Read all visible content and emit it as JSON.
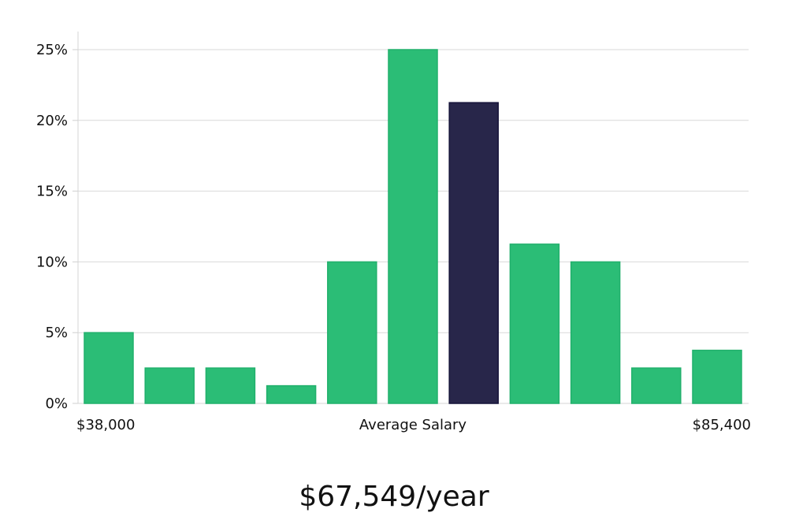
{
  "chart_data": {
    "type": "bar",
    "values": [
      5,
      2.5,
      2.5,
      1.25,
      10,
      25,
      21.25,
      11.25,
      10,
      2.5,
      3.75
    ],
    "highlight_index": 6,
    "ylim": [
      0,
      26
    ],
    "yticks": [
      0,
      5,
      10,
      15,
      20,
      25
    ],
    "ytick_suffix": "%",
    "grid": true,
    "colors": {
      "bar": "#2bbd76",
      "bar_stroke": "#21b06c",
      "highlight": "#28264a",
      "highlight_stroke": "#15133a",
      "grid": "#d9d9d9"
    },
    "x_labels": {
      "left": "$38,000",
      "center": "Average Salary",
      "right": "$85,400"
    }
  },
  "salary_text": "$67,549/year"
}
